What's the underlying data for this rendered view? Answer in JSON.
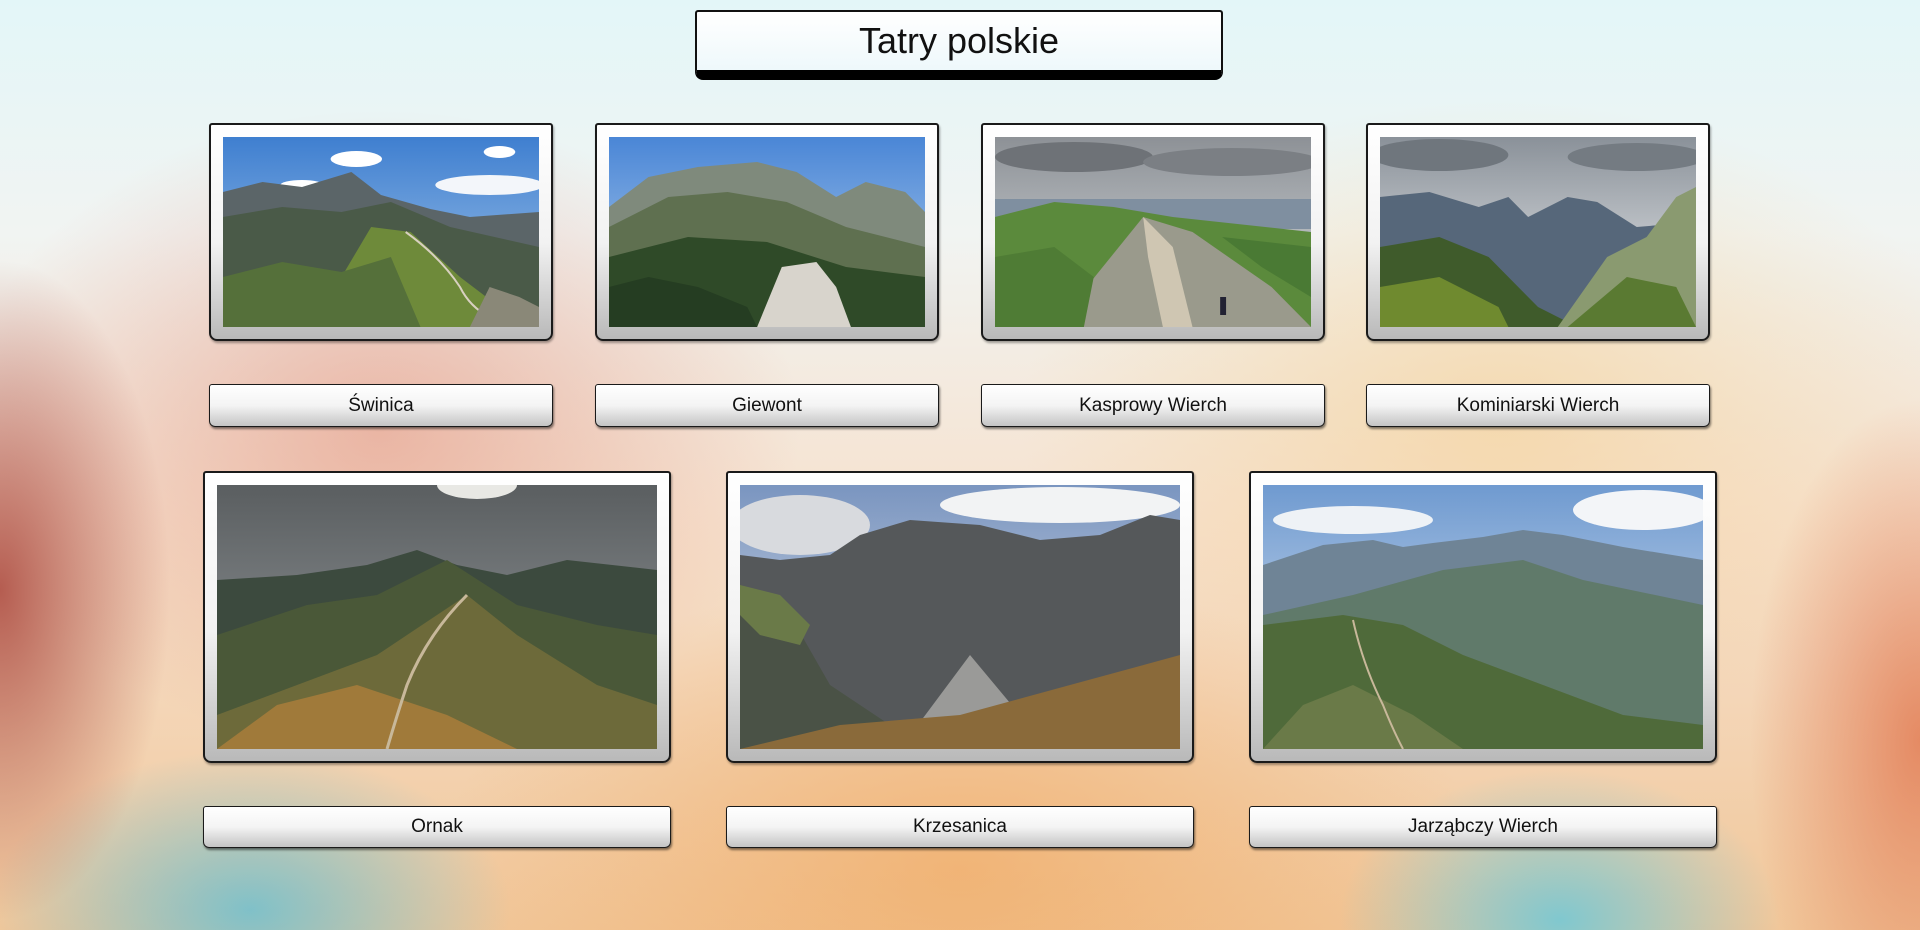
{
  "page": {
    "title": "Tatry polskie"
  },
  "peaks": [
    {
      "name": "Świnica",
      "image": "swinica-photo"
    },
    {
      "name": "Giewont",
      "image": "giewont-photo"
    },
    {
      "name": "Kasprowy Wierch",
      "image": "kasprowy-wierch-photo"
    },
    {
      "name": "Kominiarski Wierch",
      "image": "kominiarski-wierch-photo"
    },
    {
      "name": "Ornak",
      "image": "ornak-photo"
    },
    {
      "name": "Krzesanica",
      "image": "krzesanica-photo"
    },
    {
      "name": "Jarząbczy Wierch",
      "image": "jarzabczy-wierch-photo"
    }
  ]
}
